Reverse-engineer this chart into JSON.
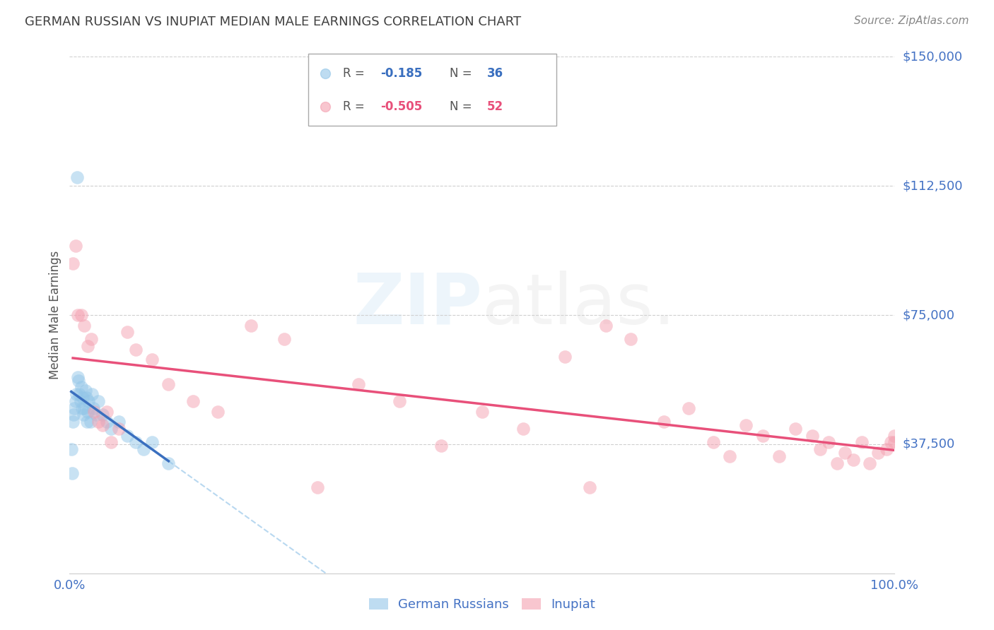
{
  "title": "GERMAN RUSSIAN VS INUPIAT MEDIAN MALE EARNINGS CORRELATION CHART",
  "source": "Source: ZipAtlas.com",
  "ylabel": "Median Male Earnings",
  "y_ticks": [
    0,
    37500,
    75000,
    112500,
    150000
  ],
  "y_tick_labels": [
    "",
    "$37,500",
    "$75,000",
    "$112,500",
    "$150,000"
  ],
  "blue_color": "#93c6e8",
  "pink_color": "#f4a0b0",
  "blue_line_color": "#3a6fbf",
  "pink_line_color": "#e8507a",
  "dashed_line_color": "#b8d8f0",
  "axis_label_color": "#4472c4",
  "gr_x": [
    0.2,
    0.3,
    0.4,
    0.5,
    0.6,
    0.7,
    0.8,
    0.9,
    1.0,
    1.1,
    1.2,
    1.3,
    1.4,
    1.5,
    1.6,
    1.7,
    1.8,
    1.9,
    2.0,
    2.1,
    2.2,
    2.3,
    2.5,
    2.7,
    2.9,
    3.2,
    3.5,
    4.0,
    4.5,
    5.0,
    6.0,
    7.0,
    8.0,
    9.0,
    10.0,
    12.0
  ],
  "gr_y": [
    36000,
    29000,
    44000,
    46000,
    48000,
    50000,
    52000,
    115000,
    57000,
    56000,
    52000,
    50000,
    54000,
    48000,
    51000,
    46000,
    48000,
    53000,
    51000,
    44000,
    47000,
    50000,
    44000,
    52000,
    48000,
    46000,
    50000,
    46000,
    44000,
    42000,
    44000,
    40000,
    38000,
    36000,
    38000,
    32000
  ],
  "inp_x": [
    0.4,
    0.7,
    1.0,
    1.4,
    1.8,
    2.2,
    2.6,
    3.0,
    3.5,
    4.0,
    4.5,
    5.0,
    6.0,
    7.0,
    8.0,
    10.0,
    12.0,
    15.0,
    18.0,
    22.0,
    26.0,
    30.0,
    35.0,
    40.0,
    45.0,
    50.0,
    55.0,
    60.0,
    63.0,
    65.0,
    68.0,
    72.0,
    75.0,
    78.0,
    80.0,
    82.0,
    84.0,
    86.0,
    88.0,
    90.0,
    91.0,
    92.0,
    93.0,
    94.0,
    95.0,
    96.0,
    97.0,
    98.0,
    99.0,
    99.5,
    100.0,
    100.0
  ],
  "inp_y": [
    90000,
    95000,
    75000,
    75000,
    72000,
    66000,
    68000,
    47000,
    44000,
    43000,
    47000,
    38000,
    42000,
    70000,
    65000,
    62000,
    55000,
    50000,
    47000,
    72000,
    68000,
    25000,
    55000,
    50000,
    37000,
    47000,
    42000,
    63000,
    25000,
    72000,
    68000,
    44000,
    48000,
    38000,
    34000,
    43000,
    40000,
    34000,
    42000,
    40000,
    36000,
    38000,
    32000,
    35000,
    33000,
    38000,
    32000,
    35000,
    36000,
    38000,
    40000,
    38000
  ]
}
